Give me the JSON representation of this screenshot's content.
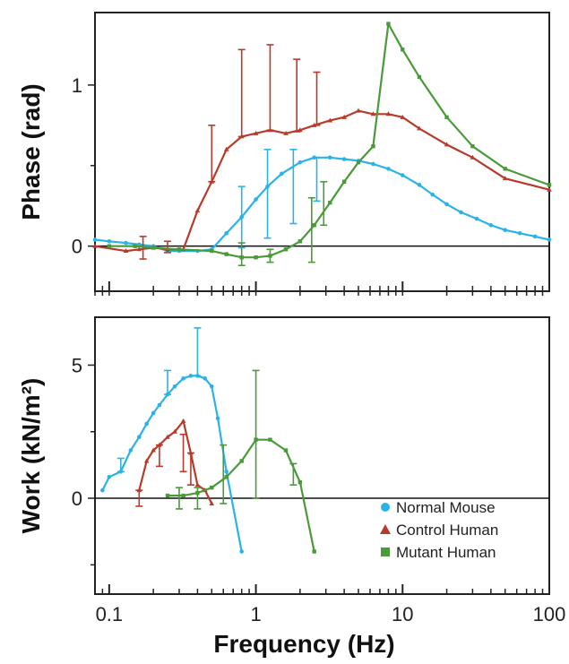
{
  "colors": {
    "normal_mouse": "#2ab3e6",
    "control_human": "#b83a2a",
    "mutant_human": "#4a9a3a"
  },
  "chart_data": [
    {
      "type": "line",
      "id": "phase",
      "ylabel": "Phase (rad)",
      "xlabel": "",
      "xscale": "log",
      "xlim": [
        0.08,
        100
      ],
      "ylim": [
        -0.28,
        1.45
      ],
      "yticks": [
        0,
        1
      ],
      "ytick_labels": [
        "0",
        "1"
      ],
      "grid": false,
      "series": [
        {
          "name": "Normal Mouse",
          "marker": "circle",
          "x": [
            0.08,
            0.1,
            0.13,
            0.16,
            0.2,
            0.25,
            0.3,
            0.4,
            0.5,
            0.63,
            0.8,
            1.0,
            1.2,
            1.5,
            2.0,
            2.5,
            3.2,
            4.0,
            5.0,
            6.3,
            8.0,
            10,
            13,
            16,
            20,
            25,
            32,
            40,
            50,
            63,
            80,
            100
          ],
          "y": [
            0.04,
            0.03,
            0.02,
            0.01,
            0.0,
            -0.03,
            -0.03,
            -0.03,
            -0.02,
            0.08,
            0.18,
            0.29,
            0.37,
            0.45,
            0.52,
            0.55,
            0.55,
            0.54,
            0.53,
            0.51,
            0.48,
            0.44,
            0.38,
            0.32,
            0.26,
            0.21,
            0.17,
            0.13,
            0.1,
            0.08,
            0.06,
            0.04
          ],
          "error_bars": [
            {
              "x": 0.8,
              "low": -0.01,
              "high": 0.37
            },
            {
              "x": 1.2,
              "low": 0.05,
              "high": 0.6
            },
            {
              "x": 1.8,
              "low": 0.14,
              "high": 0.6
            },
            {
              "x": 2.6,
              "low": 0.28,
              "high": 0.55
            }
          ]
        },
        {
          "name": "Control Human",
          "marker": "triangle",
          "x": [
            0.08,
            0.13,
            0.16,
            0.2,
            0.25,
            0.32,
            0.4,
            0.5,
            0.63,
            0.8,
            1.0,
            1.25,
            1.6,
            2.0,
            2.5,
            3.2,
            4.0,
            5.0,
            6.3,
            8.0,
            10,
            13,
            20,
            30,
            50,
            100
          ],
          "y": [
            0.0,
            -0.03,
            -0.02,
            -0.01,
            -0.02,
            -0.02,
            0.22,
            0.4,
            0.6,
            0.68,
            0.7,
            0.72,
            0.7,
            0.72,
            0.75,
            0.78,
            0.8,
            0.84,
            0.82,
            0.82,
            0.8,
            0.73,
            0.63,
            0.55,
            0.42,
            0.35
          ],
          "error_bars": [
            {
              "x": 0.17,
              "low": -0.08,
              "high": 0.06
            },
            {
              "x": 0.25,
              "low": -0.04,
              "high": 0.03
            },
            {
              "x": 0.5,
              "low": 0.4,
              "high": 0.75
            },
            {
              "x": 0.8,
              "low": 0.68,
              "high": 1.22
            },
            {
              "x": 1.25,
              "low": 0.72,
              "high": 1.25
            },
            {
              "x": 1.9,
              "low": 0.71,
              "high": 1.16
            },
            {
              "x": 2.6,
              "low": 0.75,
              "high": 1.08
            }
          ]
        },
        {
          "name": "Mutant Human",
          "marker": "square",
          "x": [
            0.1,
            0.15,
            0.2,
            0.3,
            0.5,
            0.63,
            0.8,
            1.0,
            1.25,
            1.6,
            2.0,
            2.5,
            3.2,
            4.0,
            5.0,
            6.3,
            8.0,
            10,
            13,
            20,
            30,
            50,
            100
          ],
          "y": [
            0.0,
            0.0,
            -0.01,
            -0.02,
            -0.03,
            -0.05,
            -0.07,
            -0.07,
            -0.06,
            -0.02,
            0.03,
            0.13,
            0.27,
            0.4,
            0.52,
            0.62,
            1.38,
            1.22,
            1.05,
            0.8,
            0.62,
            0.48,
            0.38
          ],
          "error_bars": [
            {
              "x": 0.8,
              "low": -0.12,
              "high": 0.02
            },
            {
              "x": 1.25,
              "low": -0.1,
              "high": -0.02
            },
            {
              "x": 2.4,
              "low": -0.1,
              "high": 0.3
            },
            {
              "x": 2.9,
              "low": 0.13,
              "high": 0.4
            }
          ]
        }
      ]
    },
    {
      "type": "line",
      "id": "work",
      "ylabel": "Work (kN/m²)",
      "xlabel": "Frequency (Hz)",
      "xscale": "log",
      "xlim": [
        0.08,
        100
      ],
      "ylim": [
        -3.6,
        6.8
      ],
      "yticks": [
        0,
        5
      ],
      "ytick_labels": [
        "0",
        "5"
      ],
      "xticks": [
        0.1,
        1,
        10,
        100
      ],
      "xtick_labels": [
        "0.1",
        "1",
        "10",
        "100"
      ],
      "grid": false,
      "legend": "bottom-right",
      "series": [
        {
          "name": "Normal Mouse",
          "marker": "circle",
          "x": [
            0.09,
            0.1,
            0.12,
            0.14,
            0.16,
            0.18,
            0.2,
            0.22,
            0.25,
            0.28,
            0.32,
            0.36,
            0.4,
            0.45,
            0.5,
            0.55,
            0.63,
            0.8
          ],
          "y": [
            0.3,
            0.8,
            1.0,
            1.8,
            2.3,
            2.8,
            3.2,
            3.5,
            3.9,
            4.2,
            4.5,
            4.6,
            4.6,
            4.5,
            4.2,
            3.0,
            1.0,
            -2.0
          ],
          "error_bars": [
            {
              "x": 0.12,
              "low": 1.0,
              "high": 1.5
            },
            {
              "x": 0.25,
              "low": 3.9,
              "high": 4.8
            },
            {
              "x": 0.4,
              "low": 4.6,
              "high": 6.4
            }
          ]
        },
        {
          "name": "Control Human",
          "marker": "triangle",
          "x": [
            0.16,
            0.18,
            0.2,
            0.22,
            0.25,
            0.28,
            0.32,
            0.36,
            0.4,
            0.45,
            0.5
          ],
          "y": [
            0.3,
            1.4,
            1.8,
            2.0,
            2.3,
            2.5,
            2.9,
            1.7,
            0.5,
            0.3,
            -0.2
          ],
          "error_bars": [
            {
              "x": 0.16,
              "low": -0.3,
              "high": 0.3
            },
            {
              "x": 0.22,
              "low": 1.2,
              "high": 2.0
            },
            {
              "x": 0.32,
              "low": 1.0,
              "high": 2.4
            },
            {
              "x": 0.36,
              "low": 0.5,
              "high": 1.7
            }
          ]
        },
        {
          "name": "Mutant Human",
          "marker": "square",
          "x": [
            0.25,
            0.32,
            0.4,
            0.5,
            0.63,
            0.8,
            1.0,
            1.25,
            1.6,
            2.0,
            2.5
          ],
          "y": [
            0.1,
            0.1,
            0.2,
            0.4,
            0.8,
            1.4,
            2.2,
            2.2,
            1.8,
            0.6,
            -2.0
          ],
          "error_bars": [
            {
              "x": 0.3,
              "low": -0.4,
              "high": 0.4
            },
            {
              "x": 0.4,
              "low": -0.4,
              "high": 0.4
            },
            {
              "x": 0.6,
              "low": -0.2,
              "high": 2.0
            },
            {
              "x": 1.0,
              "low": 0.0,
              "high": 4.8
            },
            {
              "x": 1.8,
              "low": 0.5,
              "high": 1.3
            }
          ]
        }
      ]
    }
  ]
}
